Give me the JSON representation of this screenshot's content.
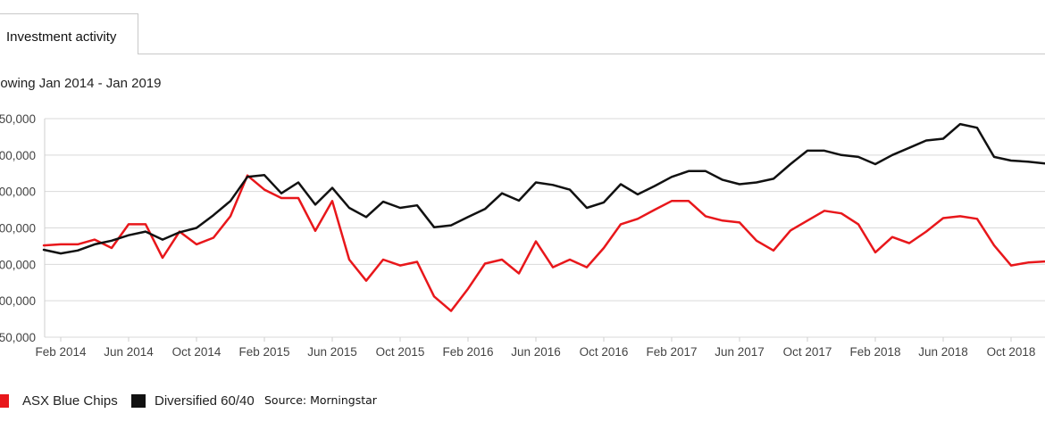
{
  "tabs": [
    {
      "label": "Investment activity"
    }
  ],
  "range_label": "howing Jan 2014 - Jan 2019",
  "source": "Source: Morningstar",
  "chart_data": {
    "type": "line",
    "x_tick_labels": [
      "Feb 2014",
      "Jun 2014",
      "Oct 2014",
      "Feb 2015",
      "Jun 2015",
      "Oct 2015",
      "Feb 2016",
      "Jun 2016",
      "Oct 2016",
      "Feb 2017",
      "Jun 2017",
      "Oct 2017",
      "Feb 2018",
      "Jun 2018",
      "Oct 2018"
    ],
    "y_tick_labels": [
      "50,000",
      "00,000",
      "00,000",
      "00,000",
      "00,000",
      "00,000",
      "50,000"
    ],
    "ylim": [
      -3,
      3
    ],
    "grid": true,
    "legend_position": "bottom-left",
    "months_from_jan_2014": [
      1,
      2,
      3,
      4,
      5,
      6,
      7,
      8,
      9,
      10,
      11,
      12,
      13,
      14,
      15,
      16,
      17,
      18,
      19,
      20,
      21,
      22,
      23,
      24,
      25,
      26,
      27,
      28,
      29,
      30,
      31,
      32,
      33,
      34,
      35,
      36,
      37,
      38,
      39,
      40,
      41,
      42,
      43,
      44,
      45,
      46,
      47,
      48,
      49,
      50,
      51,
      52,
      53,
      54,
      55,
      56,
      57,
      58,
      59,
      60
    ],
    "series": [
      {
        "name": "ASX Blue Chips",
        "color": "#e8171b",
        "values": [
          -0.48,
          -0.45,
          -0.45,
          -0.32,
          -0.55,
          0.1,
          0.1,
          -0.82,
          -0.1,
          -0.45,
          -0.27,
          0.32,
          1.44,
          1.05,
          0.82,
          0.82,
          -0.08,
          0.74,
          -0.87,
          -1.45,
          -0.87,
          -1.03,
          -0.93,
          -1.88,
          -2.28,
          -1.67,
          -0.98,
          -0.87,
          -1.25,
          -0.37,
          -1.08,
          -0.87,
          -1.08,
          -0.55,
          0.1,
          0.25,
          0.5,
          0.74,
          0.74,
          0.32,
          0.2,
          0.15,
          -0.35,
          -0.62,
          -0.07,
          0.2,
          0.47,
          0.4,
          0.1,
          -0.67,
          -0.25,
          -0.42,
          -0.1,
          0.27,
          0.32,
          0.25,
          -0.48,
          -1.03,
          -0.95,
          -0.92
        ]
      },
      {
        "name": "Diversified 60/40",
        "color": "#111111",
        "values": [
          -0.6,
          -0.7,
          -0.62,
          -0.45,
          -0.35,
          -0.2,
          -0.1,
          -0.32,
          -0.12,
          0,
          0.35,
          0.74,
          1.4,
          1.45,
          0.95,
          1.25,
          0.64,
          1.1,
          0.55,
          0.3,
          0.72,
          0.55,
          0.62,
          0.02,
          0.07,
          0.3,
          0.52,
          0.95,
          0.75,
          1.25,
          1.18,
          1.05,
          0.55,
          0.7,
          1.2,
          0.92,
          1.15,
          1.4,
          1.56,
          1.56,
          1.32,
          1.2,
          1.25,
          1.35,
          1.75,
          2.12,
          2.12,
          2.0,
          1.95,
          1.75,
          2.0,
          2.2,
          2.4,
          2.45,
          2.85,
          2.75,
          1.95,
          1.85,
          1.82,
          1.77
        ]
      }
    ]
  }
}
